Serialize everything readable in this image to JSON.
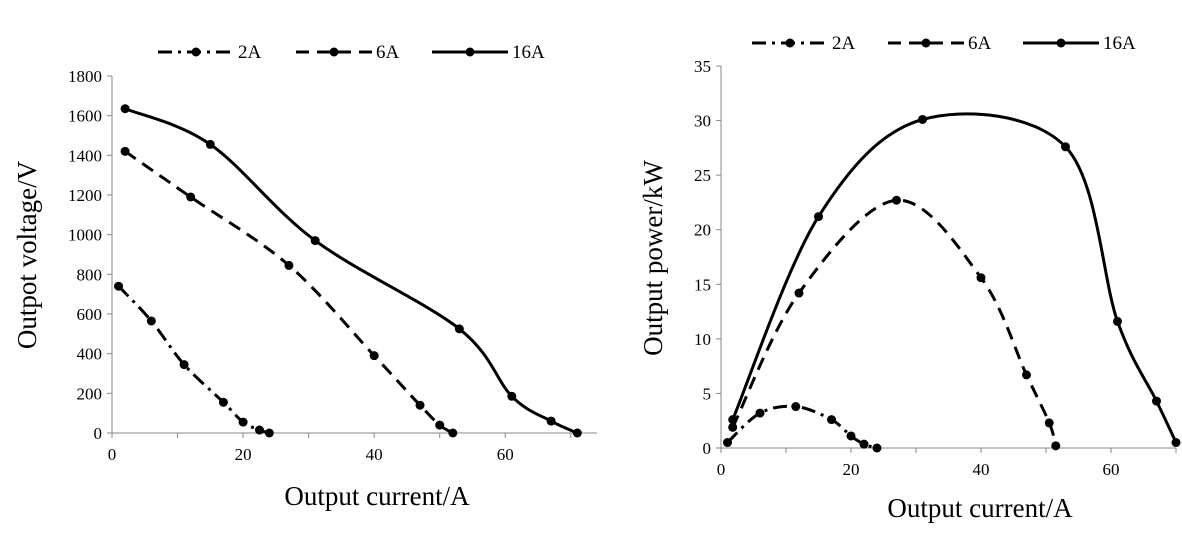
{
  "chart_data": [
    {
      "type": "line",
      "xlabel": "Output current/A",
      "ylabel": "Outpot voltage/V",
      "xlim": [
        0,
        74
      ],
      "ylim": [
        0,
        1800
      ],
      "xticks": [
        "0",
        "20",
        "40",
        "60"
      ],
      "yticks": [
        "0",
        "200",
        "400",
        "600",
        "800",
        "1000",
        "1200",
        "1400",
        "1600",
        "1800"
      ],
      "grid": false,
      "legend_position": "top",
      "series": [
        {
          "name": "2A",
          "dash": "dashdot",
          "x": [
            1,
            6,
            11,
            17,
            20,
            22.5,
            24
          ],
          "y": [
            740,
            565,
            345,
            155,
            55,
            15,
            0
          ]
        },
        {
          "name": "6A",
          "dash": "dashed",
          "x": [
            2,
            12,
            27,
            40,
            47,
            50,
            52
          ],
          "y": [
            1420,
            1190,
            845,
            390,
            140,
            40,
            0
          ]
        },
        {
          "name": "16A",
          "dash": "solid",
          "x": [
            2,
            15,
            31,
            53,
            61,
            67,
            71
          ],
          "y": [
            1635,
            1455,
            970,
            525,
            185,
            60,
            0
          ]
        }
      ]
    },
    {
      "type": "line",
      "xlabel": "Output current/A",
      "ylabel": "Output power/kW",
      "xlim": [
        0,
        70
      ],
      "ylim": [
        0,
        35
      ],
      "xticks": [
        "0",
        "20",
        "40",
        "60"
      ],
      "yticks": [
        "0",
        "5",
        "10",
        "15",
        "20",
        "25",
        "30",
        "35"
      ],
      "grid": false,
      "legend_position": "top",
      "series": [
        {
          "name": "2A",
          "dash": "dashdot",
          "x": [
            1,
            6,
            11.5,
            17,
            20,
            22,
            24
          ],
          "y": [
            0.5,
            3.2,
            3.8,
            2.6,
            1.1,
            0.35,
            0
          ]
        },
        {
          "name": "6A",
          "dash": "dashed",
          "x": [
            1.8,
            12,
            27,
            40,
            47,
            50.5,
            51.5
          ],
          "y": [
            1.9,
            14.2,
            22.7,
            15.6,
            6.7,
            2.3,
            0.2
          ]
        },
        {
          "name": "16A",
          "dash": "solid",
          "x": [
            1.8,
            15,
            31,
            53,
            61,
            67,
            70
          ],
          "y": [
            2.6,
            21.2,
            30.1,
            27.6,
            11.6,
            4.3,
            0.5
          ]
        }
      ]
    }
  ]
}
